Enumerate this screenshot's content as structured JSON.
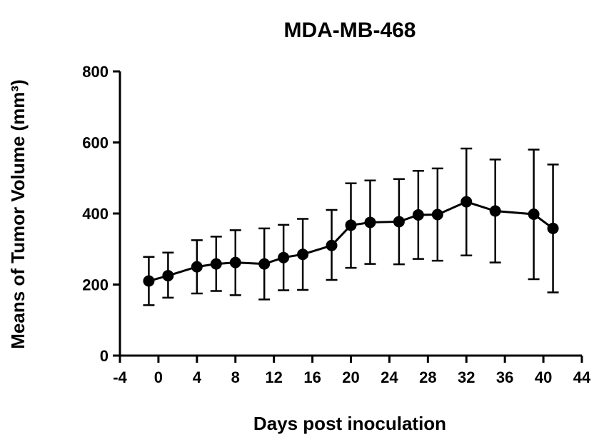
{
  "chart_data": {
    "type": "line",
    "title": "MDA-MB-468",
    "xlabel": "Days post inoculation",
    "ylabel": "Means of Tumor Volume (mm³)",
    "xlim": [
      -4,
      44
    ],
    "ylim": [
      0,
      800
    ],
    "xticks": [
      -4,
      0,
      4,
      8,
      12,
      16,
      20,
      24,
      28,
      32,
      36,
      40,
      44
    ],
    "yticks": [
      0,
      200,
      400,
      600,
      800
    ],
    "grid": false,
    "series": [
      {
        "x": [
          -1,
          1,
          4,
          6,
          8,
          11,
          13,
          15,
          18,
          20,
          22,
          25,
          27,
          29,
          32,
          35,
          39,
          41
        ],
        "values": [
          210,
          225,
          250,
          258,
          262,
          258,
          276,
          285,
          310,
          367,
          375,
          377,
          396,
          397,
          433,
          407,
          398,
          358
        ],
        "error_low": [
          142,
          163,
          175,
          182,
          170,
          158,
          184,
          185,
          213,
          247,
          258,
          257,
          272,
          267,
          282,
          262,
          215,
          178
        ],
        "error_high": [
          278,
          290,
          325,
          335,
          353,
          358,
          368,
          385,
          410,
          485,
          493,
          497,
          520,
          527,
          583,
          552,
          580,
          538
        ]
      }
    ]
  }
}
